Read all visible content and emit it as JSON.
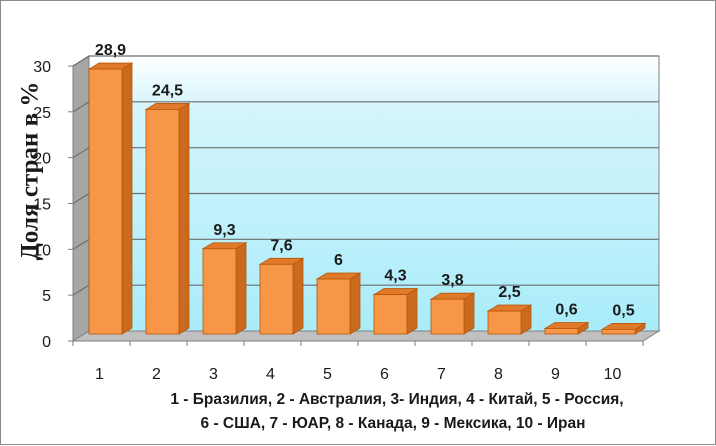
{
  "chart_data": {
    "type": "bar",
    "categories": [
      "1",
      "2",
      "3",
      "4",
      "5",
      "6",
      "7",
      "8",
      "9",
      "10"
    ],
    "values": [
      28.9,
      24.5,
      9.3,
      7.6,
      6,
      4.3,
      3.8,
      2.5,
      0.6,
      0.5
    ],
    "data_labels": [
      "28,9",
      "24,5",
      "9,3",
      "7,6",
      "6",
      "4,3",
      "3,8",
      "2,5",
      "0,6",
      "0,5"
    ],
    "y_ticks": [
      "0",
      "5",
      "10",
      "15",
      "20",
      "25",
      "30"
    ],
    "ylim": [
      0,
      30
    ],
    "ylabel": "Доля стран в %",
    "xlabel": "",
    "legend_lines": [
      "1 - Бразилия, 2 - Австралия, 3- Индия, 4 - Китай, 5 - Россия,",
      "6 - США, 7 - ЮАР, 8 - Канада, 9 - Мексика, 10 - Иран"
    ],
    "grid": true,
    "style": "3d",
    "colors": {
      "bar_front": "#f79646",
      "bar_side": "#c96a1f",
      "bar_top": "#e07a2a",
      "bar_edge": "#b65708",
      "back_wall": "#bdeefa",
      "side_wall": "#a6a6a6",
      "floor": "#c0c0c0",
      "gridline": "#6d6d6d"
    }
  }
}
